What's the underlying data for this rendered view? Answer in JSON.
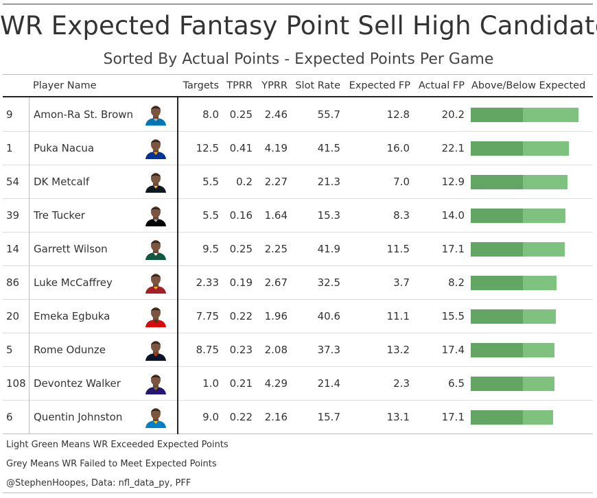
{
  "title": "WR Expected Fantasy Point Sell High Candidates",
  "subtitle": "Sorted By Actual Points - Expected Points Per Game",
  "columns": {
    "rank": "",
    "player": "Player Name",
    "targets": "Targets",
    "tprr": "TPRR",
    "yprr": "YPRR",
    "slot": "Slot Rate",
    "xfp": "Expected FP",
    "afp": "Actual FP",
    "bar": "Above/Below Expected"
  },
  "colors": {
    "expected_bar": "#63a563",
    "exceeded_bar": "#7fc27f",
    "rule": "#bdbdbd",
    "text": "#333333"
  },
  "chart_data": {
    "type": "table",
    "bar_column": "Above/Below Expected",
    "rows": [
      {
        "rank": "9",
        "player": "Amon-Ra St. Brown",
        "targets": "8.0",
        "tprr": "0.25",
        "yprr": "2.46",
        "slot": "55.7",
        "xfp": "12.8",
        "afp": "20.2",
        "team_color": "#0076b6",
        "team_color2": "#b0b7bc"
      },
      {
        "rank": "1",
        "player": "Puka Nacua",
        "targets": "12.5",
        "tprr": "0.41",
        "yprr": "4.19",
        "slot": "41.5",
        "xfp": "16.0",
        "afp": "22.1",
        "team_color": "#003594",
        "team_color2": "#ffa300"
      },
      {
        "rank": "54",
        "player": "DK Metcalf",
        "targets": "5.5",
        "tprr": "0.2",
        "yprr": "2.27",
        "slot": "21.3",
        "xfp": "7.0",
        "afp": "12.9",
        "team_color": "#101820",
        "team_color2": "#ffb612"
      },
      {
        "rank": "39",
        "player": "Tre Tucker",
        "targets": "5.5",
        "tprr": "0.16",
        "yprr": "1.64",
        "slot": "15.3",
        "xfp": "8.3",
        "afp": "14.0",
        "team_color": "#000000",
        "team_color2": "#a5acaf"
      },
      {
        "rank": "14",
        "player": "Garrett Wilson",
        "targets": "9.5",
        "tprr": "0.25",
        "yprr": "2.25",
        "slot": "41.9",
        "xfp": "11.5",
        "afp": "17.1",
        "team_color": "#125740",
        "team_color2": "#ffffff"
      },
      {
        "rank": "86",
        "player": "Luke McCaffrey",
        "targets": "2.33",
        "tprr": "0.19",
        "yprr": "2.67",
        "slot": "32.5",
        "xfp": "3.7",
        "afp": "8.2",
        "team_color": "#a3202b",
        "team_color2": "#ffb612"
      },
      {
        "rank": "20",
        "player": "Emeka Egbuka",
        "targets": "7.75",
        "tprr": "0.22",
        "yprr": "1.96",
        "slot": "40.6",
        "xfp": "11.1",
        "afp": "15.5",
        "team_color": "#d50a0a",
        "team_color2": "#34302b"
      },
      {
        "rank": "5",
        "player": "Rome Odunze",
        "targets": "8.75",
        "tprr": "0.23",
        "yprr": "2.08",
        "slot": "37.3",
        "xfp": "13.2",
        "afp": "17.4",
        "team_color": "#0b162a",
        "team_color2": "#c83803"
      },
      {
        "rank": "108",
        "player": "Devontez Walker",
        "targets": "1.0",
        "tprr": "0.21",
        "yprr": "4.29",
        "slot": "21.4",
        "xfp": "2.3",
        "afp": "6.5",
        "team_color": "#241773",
        "team_color2": "#9e7c0c"
      },
      {
        "rank": "6",
        "player": "Quentin Johnston",
        "targets": "9.0",
        "tprr": "0.22",
        "yprr": "2.16",
        "slot": "15.7",
        "xfp": "13.1",
        "afp": "17.1",
        "team_color": "#0080c6",
        "team_color2": "#ffc20e"
      }
    ]
  },
  "footer": {
    "note1": "Light Green Means WR Exceeded Expected Points",
    "note2": "Grey Means WR Failed to Meet Expected Points",
    "credit": "@StephenHoopes, Data: nfl_data_py, PFF"
  }
}
